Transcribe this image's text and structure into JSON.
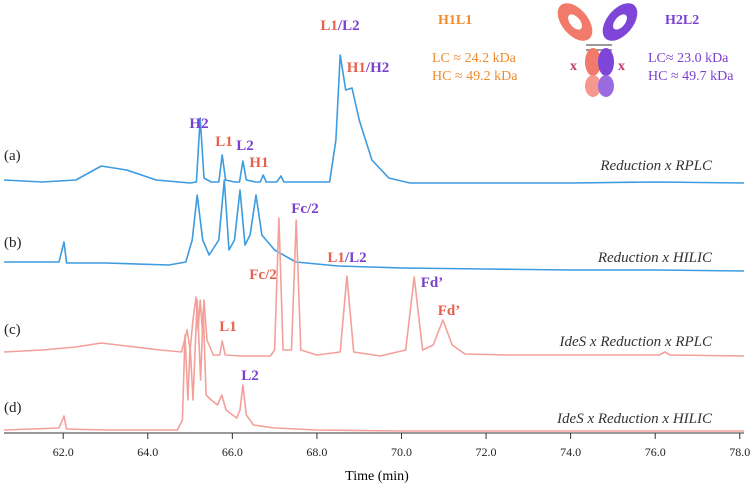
{
  "chart_data": {
    "type": "line",
    "xlabel": "Time (min)",
    "xlim": [
      60.6,
      78.1
    ],
    "xticks": [
      {
        "value": 62,
        "label": "62.0"
      },
      {
        "value": 64,
        "label": "64.0"
      },
      {
        "value": 66,
        "label": "66.0"
      },
      {
        "value": 68,
        "label": "68.0"
      },
      {
        "value": 70,
        "label": "70.0"
      },
      {
        "value": 72,
        "label": "72.0"
      },
      {
        "value": 74,
        "label": "74.0"
      },
      {
        "value": 76,
        "label": "76.0"
      },
      {
        "value": 78,
        "label": "78.0"
      }
    ],
    "ylim": [
      0,
      435
    ],
    "series": [
      {
        "label": "(a)",
        "name": "Reduction x RPLC",
        "color": "#3d9be0",
        "x": [
          60.6,
          61.5,
          62.3,
          62.9,
          63.5,
          64.2,
          65.0,
          65.15,
          65.24,
          65.33,
          65.5,
          65.68,
          65.76,
          65.84,
          66.05,
          66.17,
          66.25,
          66.33,
          66.55,
          66.66,
          66.73,
          66.8,
          67.05,
          67.15,
          67.22,
          67.6,
          68.3,
          68.45,
          68.55,
          68.68,
          68.83,
          69.0,
          69.3,
          69.7,
          70.2,
          71.0,
          72,
          74,
          76,
          78.1
        ],
        "values": [
          255,
          253,
          255,
          269,
          265,
          255,
          252,
          253,
          317,
          257,
          253,
          253,
          280,
          255,
          253,
          253,
          274,
          255,
          253,
          253,
          260,
          253,
          253,
          259,
          253,
          253,
          253,
          295,
          380,
          345,
          347,
          315,
          275,
          257,
          252,
          252,
          252,
          252,
          253,
          252
        ]
      },
      {
        "label": "(b)",
        "name": "Reduction x HILIC",
        "color": "#3d9be0",
        "x": [
          60.6,
          61.9,
          62.02,
          62.08,
          63,
          64.5,
          64.9,
          65.05,
          65.17,
          65.3,
          65.45,
          65.68,
          65.81,
          65.92,
          66.05,
          66.18,
          66.3,
          66.42,
          66.56,
          66.7,
          67.0,
          67.5,
          68.5,
          70,
          72,
          74,
          76,
          78.1
        ],
        "values": [
          173,
          173,
          193,
          172,
          172,
          170,
          173,
          195,
          240,
          195,
          180,
          195,
          255,
          185,
          195,
          245,
          190,
          200,
          240,
          200,
          185,
          173,
          169,
          167,
          166,
          165,
          165,
          164
        ]
      },
      {
        "label": "(c)",
        "name": "IdeS x Reduction x RPLC",
        "color": "#f4a09a",
        "x": [
          60.6,
          61.5,
          62.3,
          62.9,
          63.5,
          64.3,
          64.8,
          64.93,
          65.0,
          65.07,
          65.14,
          65.19,
          65.24,
          65.29,
          65.33,
          65.4,
          65.55,
          65.7,
          65.76,
          65.83,
          66.2,
          66.9,
          67.0,
          67.1,
          67.2,
          67.4,
          67.51,
          67.62,
          68.0,
          68.55,
          68.71,
          68.87,
          69.5,
          70.1,
          70.3,
          70.5,
          70.75,
          70.98,
          71.2,
          71.5,
          72.5,
          74,
          76.1,
          76.23,
          76.35,
          78.1
        ],
        "values": [
          83,
          85,
          88,
          92,
          89,
          85,
          83,
          105,
          85,
          115,
          138,
          105,
          135,
          105,
          135,
          95,
          80,
          80,
          94,
          80,
          79,
          79,
          85,
          217,
          85,
          85,
          215,
          85,
          80,
          83,
          159,
          83,
          79,
          85,
          158,
          85,
          90,
          115,
          90,
          81,
          80,
          80,
          80,
          83,
          80,
          79
        ]
      },
      {
        "label": "(d)",
        "name": "IdeS x Reduction x HILIC",
        "color": "#f4a09a",
        "x": [
          60.6,
          61.9,
          62.02,
          62.08,
          63,
          64.7,
          64.82,
          64.88,
          64.95,
          65.0,
          65.07,
          65.17,
          65.25,
          65.31,
          65.38,
          65.5,
          65.65,
          65.75,
          65.85,
          66.1,
          66.18,
          66.25,
          66.33,
          66.5,
          67,
          68,
          70,
          72,
          74,
          76,
          78.1
        ],
        "values": [
          5,
          7,
          19,
          6,
          5,
          5,
          15,
          100,
          35,
          90,
          35,
          135,
          55,
          125,
          40,
          35,
          30,
          40,
          25,
          17,
          25,
          50,
          20,
          10,
          7,
          5,
          4,
          4,
          4,
          4,
          4
        ]
      }
    ],
    "annotations": [
      {
        "parts": [
          {
            "text": "H2",
            "color": "#7b3fd0"
          }
        ]
      },
      {
        "parts": [
          {
            "text": "L1",
            "color": "#e8604c"
          }
        ]
      },
      {
        "parts": [
          {
            "text": "L2",
            "color": "#7b3fd0"
          }
        ]
      },
      {
        "parts": [
          {
            "text": "H1",
            "color": "#e8604c"
          }
        ]
      },
      {
        "parts": [
          {
            "text": "L1",
            "color": "#e8604c"
          },
          {
            "text": "/",
            "color": "#7b3fd0"
          },
          {
            "text": "L2",
            "color": "#7b3fd0"
          }
        ]
      },
      {
        "parts": [
          {
            "text": "H1",
            "color": "#e8604c"
          },
          {
            "text": "/",
            "color": "#7b3fd0"
          },
          {
            "text": "H2",
            "color": "#7b3fd0"
          }
        ]
      },
      {
        "parts": [
          {
            "text": "Fc/2",
            "color": "#e8604c"
          }
        ]
      },
      {
        "parts": [
          {
            "text": "Fc/2",
            "color": "#7b3fd0"
          }
        ]
      },
      {
        "parts": [
          {
            "text": "L1",
            "color": "#e8604c"
          },
          {
            "text": "/",
            "color": "#7b3fd0"
          },
          {
            "text": "L2",
            "color": "#7b3fd0"
          }
        ]
      },
      {
        "parts": [
          {
            "text": "Fd’",
            "color": "#7b3fd0"
          }
        ]
      },
      {
        "parts": [
          {
            "text": "Fd’",
            "color": "#e8604c"
          }
        ]
      },
      {
        "parts": [
          {
            "text": "L1",
            "color": "#e8604c"
          }
        ]
      },
      {
        "parts": [
          {
            "text": "L2",
            "color": "#7b3fd0"
          }
        ]
      }
    ],
    "inset": {
      "left_title": "H1L1",
      "left_color": "#f08a2c",
      "left_lc": "LC ≈ 24.2 kDa",
      "left_hc": "HC ≈ 49.2 kDa",
      "right_title": "H2L2",
      "right_color": "#7b3fd0",
      "right_lc": "LC≈ 23.0 kDa",
      "right_hc": "HC ≈ 49.7 kDa"
    }
  }
}
